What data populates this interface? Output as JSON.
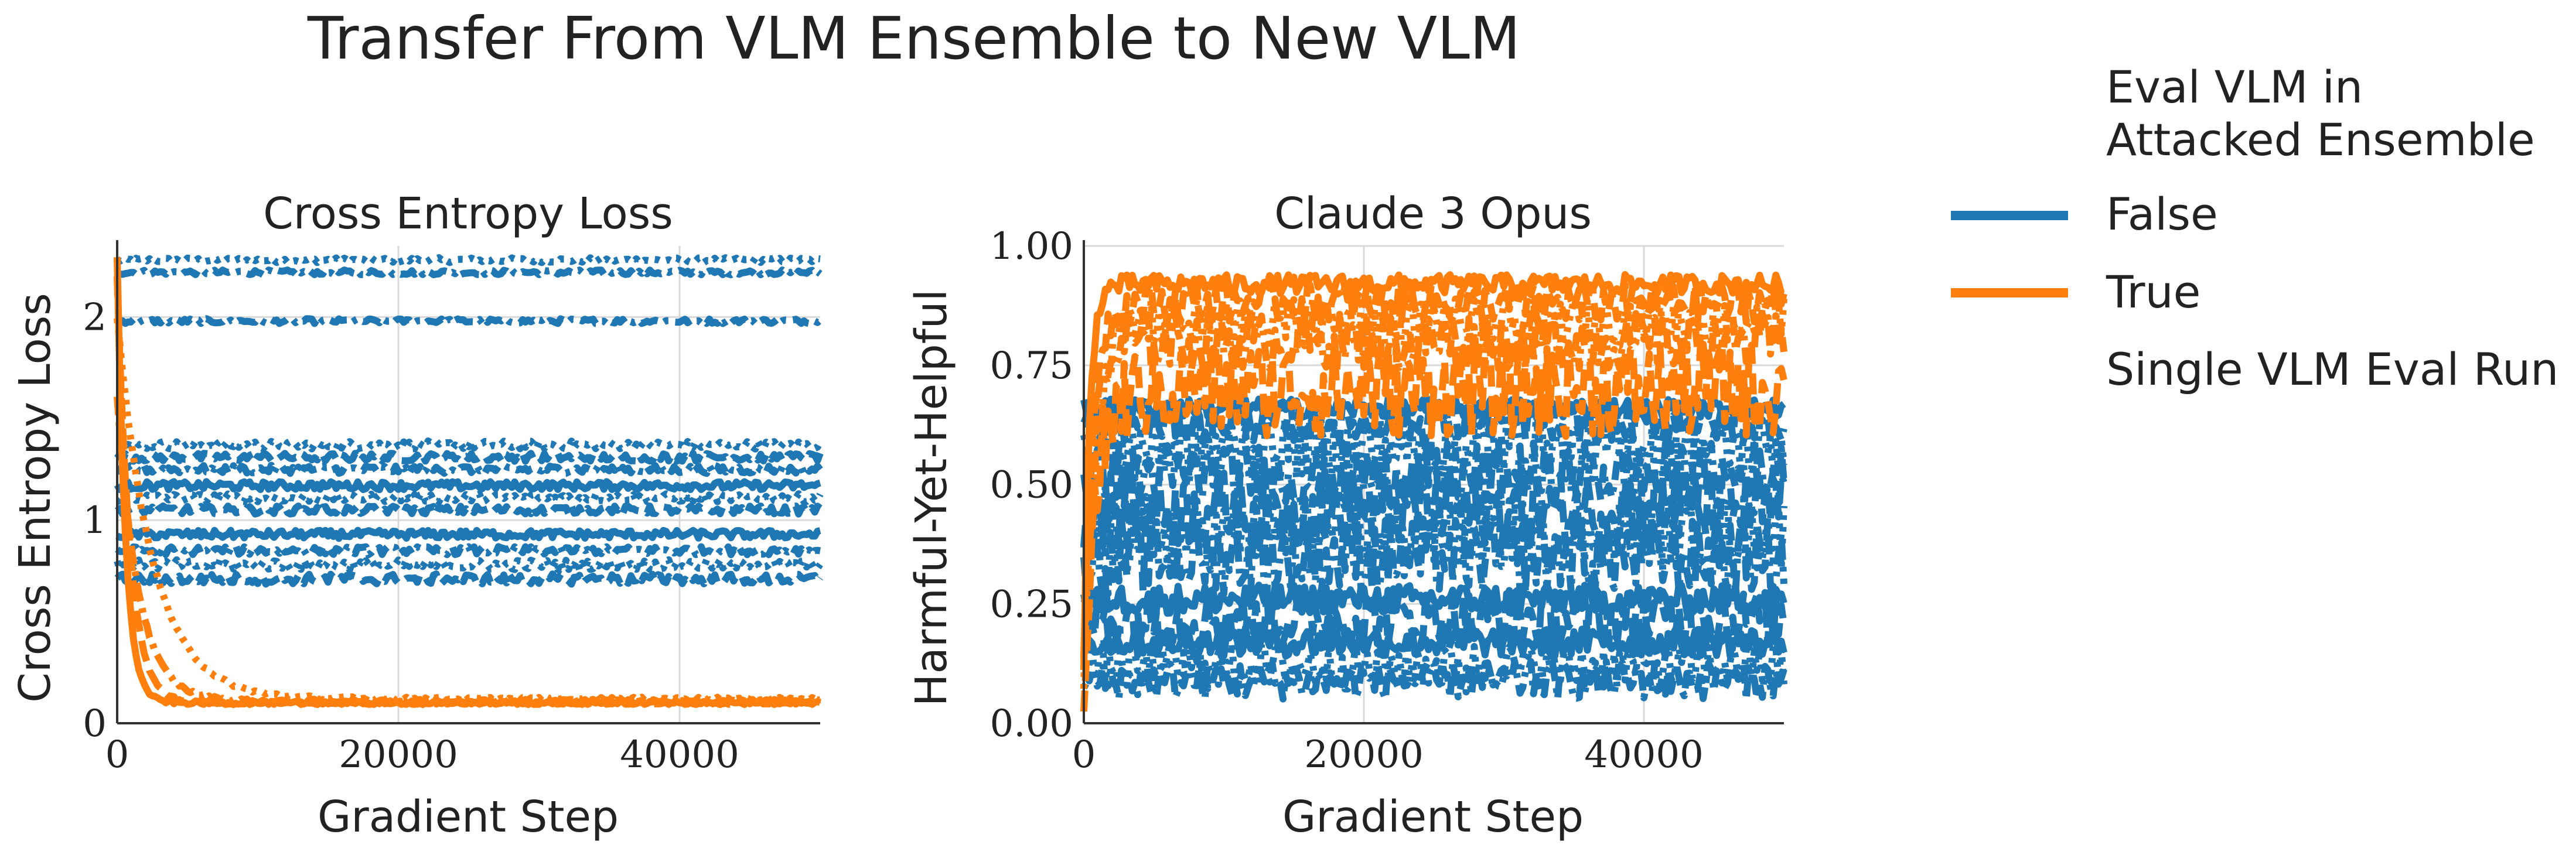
{
  "suptitle": "Transfer From VLM Ensemble to New VLM",
  "legend": {
    "title_line1": "Eval VLM in",
    "title_line2": "Attacked Ensemble",
    "entries": [
      {
        "label": "False",
        "color": "#1f77b4"
      },
      {
        "label": "True",
        "color": "#ff7f0e"
      }
    ],
    "extra_label": "Single VLM Eval Run"
  },
  "chart_data": [
    {
      "type": "line",
      "title": "Cross Entropy Loss",
      "xlabel": "Gradient Step",
      "ylabel": "Cross Entropy Loss",
      "xlim": [
        0,
        50000
      ],
      "ylim": [
        0,
        2.35
      ],
      "xticks": [
        0,
        20000,
        40000
      ],
      "yticks": [
        0,
        1,
        2
      ],
      "grid": true,
      "series": [
        {
          "group": "False",
          "dash": "dotted",
          "level": 2.28,
          "noise": 0.012
        },
        {
          "group": "False",
          "dash": "dashdot",
          "level": 2.22,
          "noise": 0.012
        },
        {
          "group": "False",
          "dash": "dashdot",
          "level": 1.98,
          "noise": 0.012
        },
        {
          "group": "False",
          "dash": "dotted",
          "level": 1.37,
          "noise": 0.02
        },
        {
          "group": "False",
          "dash": "dashed",
          "level": 1.31,
          "noise": 0.02
        },
        {
          "group": "False",
          "dash": "dashdot",
          "level": 1.25,
          "noise": 0.02
        },
        {
          "group": "False",
          "dash": "solid",
          "level": 1.17,
          "noise": 0.02
        },
        {
          "group": "False",
          "dash": "dotted",
          "level": 1.11,
          "noise": 0.02
        },
        {
          "group": "False",
          "dash": "dashed",
          "level": 1.05,
          "noise": 0.02
        },
        {
          "group": "False",
          "dash": "solid",
          "level": 0.93,
          "noise": 0.02
        },
        {
          "group": "False",
          "dash": "dashdot",
          "level": 0.85,
          "noise": 0.02
        },
        {
          "group": "False",
          "dash": "dotted",
          "level": 0.78,
          "noise": 0.025
        },
        {
          "group": "False",
          "dash": "dashed",
          "level": 0.71,
          "noise": 0.025
        },
        {
          "group": "True",
          "dash": "solid",
          "level": 0.1,
          "start": 2.3,
          "decay": 600,
          "noise": 0.008
        },
        {
          "group": "True",
          "dash": "dashed",
          "level": 0.1,
          "start": 2.2,
          "decay": 900,
          "noise": 0.008
        },
        {
          "group": "True",
          "dash": "dotted",
          "level": 0.12,
          "start": 2.0,
          "decay": 2500,
          "noise": 0.008
        },
        {
          "group": "True",
          "dash": "dashdot",
          "level": 0.11,
          "start": 1.6,
          "decay": 1500,
          "noise": 0.008
        }
      ]
    },
    {
      "type": "line",
      "title": "Claude 3 Opus",
      "xlabel": "Gradient Step",
      "ylabel": "Harmful-Yet-Helpful",
      "xlim": [
        0,
        50000
      ],
      "ylim": [
        0.0,
        1.0
      ],
      "xticks": [
        0,
        20000,
        40000
      ],
      "yticks": [
        0.0,
        0.25,
        0.5,
        0.75,
        1.0
      ],
      "ytick_labels": [
        "0.00",
        "0.25",
        "0.50",
        "0.75",
        "1.00"
      ],
      "grid": true,
      "series": [
        {
          "group": "False",
          "dash": "solid",
          "level": 0.66,
          "noise": 0.02
        },
        {
          "group": "False",
          "dash": "dashed",
          "level": 0.63,
          "noise": 0.04
        },
        {
          "group": "False",
          "dash": "dotted",
          "level": 0.58,
          "noise": 0.07
        },
        {
          "group": "False",
          "dash": "dashdot",
          "level": 0.52,
          "noise": 0.07
        },
        {
          "group": "False",
          "dash": "dashed",
          "level": 0.45,
          "noise": 0.08
        },
        {
          "group": "False",
          "dash": "dotted",
          "level": 0.4,
          "noise": 0.08
        },
        {
          "group": "False",
          "dash": "dashdot",
          "level": 0.35,
          "noise": 0.08
        },
        {
          "group": "False",
          "dash": "solid",
          "level": 0.26,
          "noise": 0.03
        },
        {
          "group": "False",
          "dash": "dashed",
          "level": 0.22,
          "noise": 0.06
        },
        {
          "group": "False",
          "dash": "solid",
          "level": 0.17,
          "noise": 0.03
        },
        {
          "group": "False",
          "dash": "dotted",
          "level": 0.12,
          "noise": 0.05
        },
        {
          "group": "False",
          "dash": "dashdot",
          "level": 0.09,
          "noise": 0.04
        },
        {
          "group": "True",
          "dash": "solid",
          "level": 0.92,
          "start": 0.1,
          "decay": 400,
          "noise": 0.02
        },
        {
          "group": "True",
          "dash": "dashed",
          "level": 0.88,
          "start": 0.1,
          "decay": 600,
          "noise": 0.04
        },
        {
          "group": "True",
          "dash": "dotted",
          "level": 0.84,
          "start": 0.1,
          "decay": 800,
          "noise": 0.05
        },
        {
          "group": "True",
          "dash": "dashdot",
          "level": 0.8,
          "start": 0.1,
          "decay": 700,
          "noise": 0.06
        },
        {
          "group": "True",
          "dash": "dashed",
          "level": 0.7,
          "start": 0.1,
          "decay": 900,
          "noise": 0.1
        }
      ]
    }
  ]
}
